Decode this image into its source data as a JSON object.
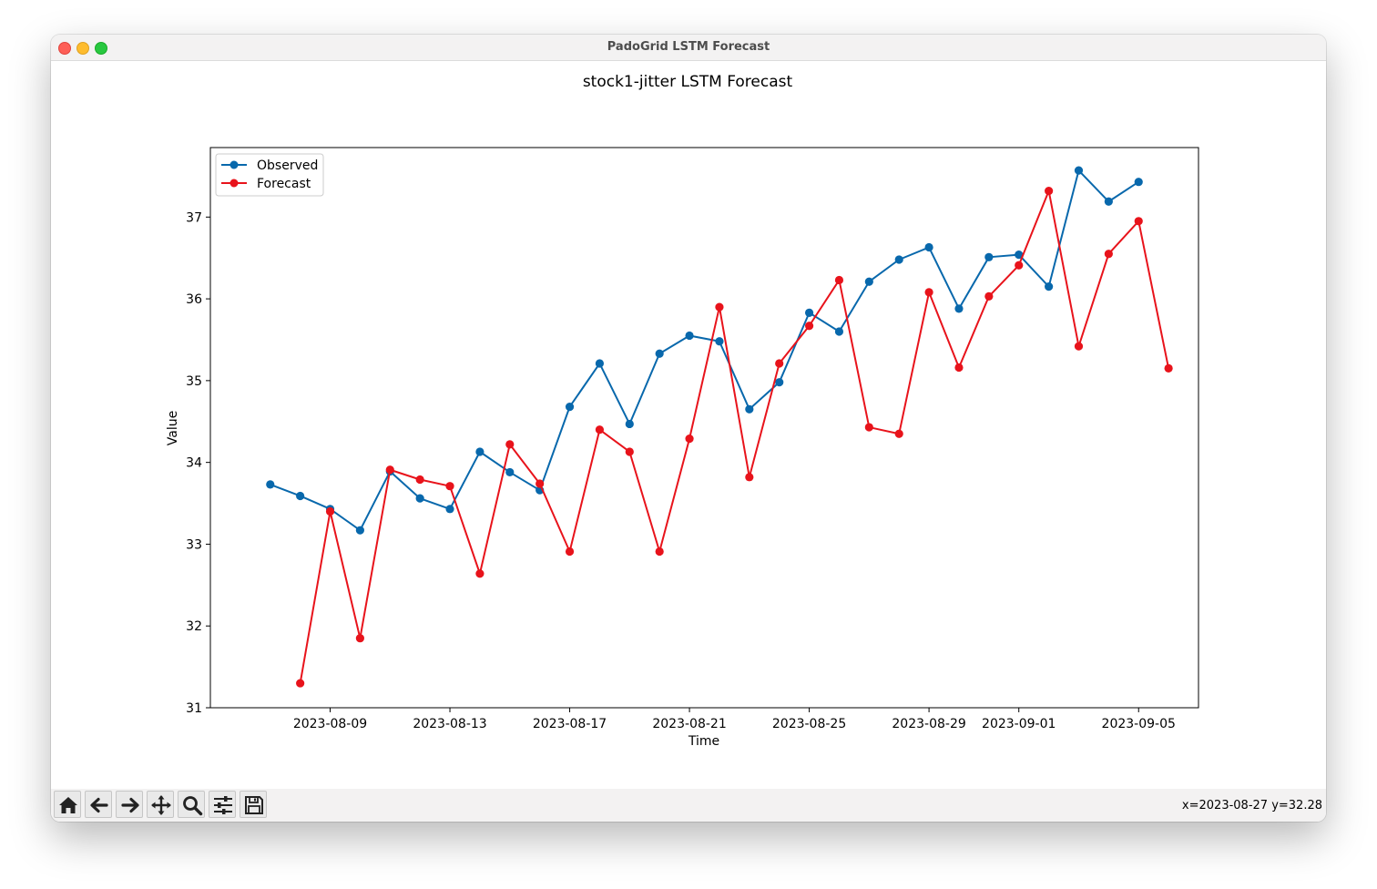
{
  "window": {
    "title": "PadoGrid LSTM Forecast"
  },
  "toolbar": {
    "buttons": [
      {
        "name": "home-button",
        "icon": "home-icon",
        "tooltip": "Reset original view"
      },
      {
        "name": "back-button",
        "icon": "arrow-left-icon",
        "tooltip": "Back to previous view"
      },
      {
        "name": "forward-button",
        "icon": "arrow-right-icon",
        "tooltip": "Forward to next view"
      },
      {
        "name": "pan-button",
        "icon": "move-icon",
        "tooltip": "Pan axes"
      },
      {
        "name": "zoom-button",
        "icon": "magnifier-icon",
        "tooltip": "Zoom to rectangle"
      },
      {
        "name": "configure-button",
        "icon": "sliders-icon",
        "tooltip": "Configure subplots"
      },
      {
        "name": "save-button",
        "icon": "floppy-disk-icon",
        "tooltip": "Save the figure"
      }
    ],
    "coords": "x=2023-08-27 y=32.28"
  },
  "chart_data": {
    "type": "line",
    "title": "stock1-jitter LSTM Forecast",
    "xlabel": "Time",
    "ylabel": "Value",
    "x_type": "date",
    "xlim": [
      "2023-08-05",
      "2023-09-07"
    ],
    "ylim": [
      31,
      37.85
    ],
    "x_ticks": [
      "2023-08-09",
      "2023-08-13",
      "2023-08-17",
      "2023-08-21",
      "2023-08-25",
      "2023-08-29",
      "2023-09-01",
      "2023-09-05"
    ],
    "y_ticks": [
      31,
      32,
      33,
      34,
      35,
      36,
      37
    ],
    "grid": false,
    "legend": {
      "position": "upper-left",
      "entries": [
        "Observed",
        "Forecast"
      ]
    },
    "series": [
      {
        "name": "Observed",
        "color": "#0868ac",
        "marker": "circle",
        "x": [
          "2023-08-07",
          "2023-08-08",
          "2023-08-09",
          "2023-08-10",
          "2023-08-11",
          "2023-08-12",
          "2023-08-13",
          "2023-08-14",
          "2023-08-15",
          "2023-08-16",
          "2023-08-17",
          "2023-08-18",
          "2023-08-19",
          "2023-08-20",
          "2023-08-21",
          "2023-08-22",
          "2023-08-23",
          "2023-08-24",
          "2023-08-25",
          "2023-08-26",
          "2023-08-27",
          "2023-08-28",
          "2023-08-29",
          "2023-08-30",
          "2023-08-31",
          "2023-09-01",
          "2023-09-02",
          "2023-09-03",
          "2023-09-04",
          "2023-09-05"
        ],
        "values": [
          33.73,
          33.59,
          33.43,
          33.17,
          33.89,
          33.56,
          33.43,
          34.13,
          33.88,
          33.66,
          34.68,
          35.21,
          34.47,
          35.33,
          35.55,
          35.48,
          34.65,
          34.98,
          35.83,
          35.6,
          36.21,
          36.48,
          36.63,
          35.88,
          36.51,
          36.54,
          36.15,
          37.57,
          37.19,
          37.43
        ]
      },
      {
        "name": "Forecast",
        "color": "#e8131b",
        "marker": "circle",
        "x": [
          "2023-08-08",
          "2023-08-09",
          "2023-08-10",
          "2023-08-11",
          "2023-08-12",
          "2023-08-13",
          "2023-08-14",
          "2023-08-15",
          "2023-08-16",
          "2023-08-17",
          "2023-08-18",
          "2023-08-19",
          "2023-08-20",
          "2023-08-21",
          "2023-08-22",
          "2023-08-23",
          "2023-08-24",
          "2023-08-25",
          "2023-08-26",
          "2023-08-27",
          "2023-08-28",
          "2023-08-29",
          "2023-08-30",
          "2023-08-31",
          "2023-09-01",
          "2023-09-02",
          "2023-09-03",
          "2023-09-04",
          "2023-09-05",
          "2023-09-06"
        ],
        "values": [
          31.3,
          33.4,
          31.85,
          33.91,
          33.79,
          33.71,
          32.64,
          34.22,
          33.74,
          32.91,
          34.4,
          34.13,
          32.91,
          34.29,
          35.9,
          33.82,
          35.21,
          35.67,
          36.23,
          34.43,
          34.35,
          36.08,
          35.16,
          36.03,
          36.41,
          37.32,
          35.42,
          36.55,
          36.95,
          35.15
        ]
      }
    ]
  }
}
